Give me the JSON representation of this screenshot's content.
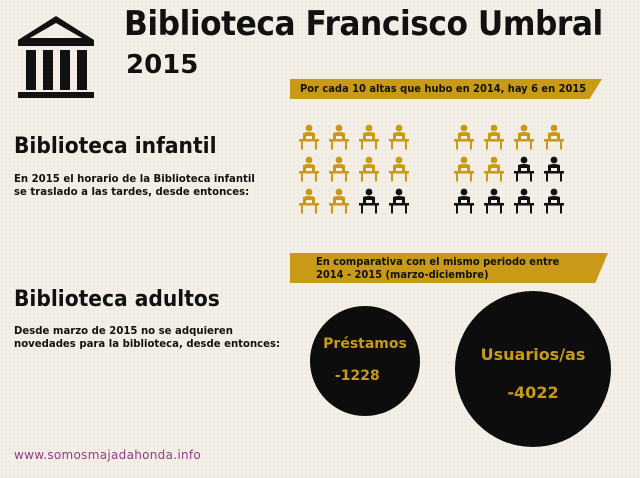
{
  "header": {
    "title": "Biblioteca Francisco Umbral",
    "year": "2015",
    "logo_icon": "library-building-icon"
  },
  "banner_altas": "Por cada 10 altas que hubo en 2014, hay 6 en 2015",
  "pictograms": {
    "icon": "reader-at-desk-icon",
    "gold_color": "#c89a17",
    "black_color": "#111111",
    "group_2014": {
      "total": 12,
      "highlighted": 10
    },
    "group_2015": {
      "total": 12,
      "highlighted": 6
    }
  },
  "infantil": {
    "heading": "Biblioteca infantil",
    "text_line1": "En 2015 el horario de la Biblioteca infantil",
    "text_line2": "se traslado a las tardes, desde entonces:"
  },
  "banner_comparativa": {
    "line1": "En comparativa con el mismo periodo entre",
    "line2": "2014 - 2015 (marzo-diciembre)"
  },
  "adultos": {
    "heading": "Biblioteca adultos",
    "text_line1": "Desde marzo de 2015 no se adquieren",
    "text_line2": "novedades para la biblioteca, desde entonces:"
  },
  "prestamos": {
    "label": "Préstamos",
    "value": "-1228"
  },
  "usuarios": {
    "label": "Usuarios/as",
    "value": "-4022"
  },
  "site": "www.somosmajadahonda.info"
}
